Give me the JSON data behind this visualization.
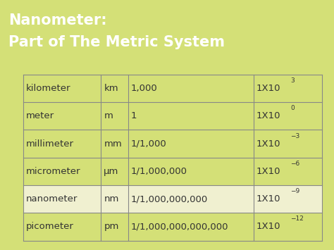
{
  "title_line1": "Nanometer:",
  "title_line2": "Part of The Metric System",
  "title_bg_color": "#556b2f",
  "title_text_color": "#ffffff",
  "page_bg_color": "#d4e077",
  "table_bg_color": "#d4e077",
  "highlight_row": 4,
  "highlight_color": "#f0f0d0",
  "border_color": "#888888",
  "text_color": "#333333",
  "rows": [
    [
      "kilometer",
      "km",
      "1,000",
      "3"
    ],
    [
      "meter",
      "m",
      "1",
      "0"
    ],
    [
      "millimeter",
      "mm",
      "1/1,000",
      "−3"
    ],
    [
      "micrometer",
      "μm",
      "1/1,000,000",
      "−6"
    ],
    [
      "nanometer",
      "nm",
      "1/1,000,000,000",
      "−9"
    ],
    [
      "picometer",
      "pm",
      "1/1,000,000,000,000",
      "−12"
    ]
  ],
  "title_font_size": 15,
  "font_size": 9.5,
  "sup_font_size": 6.5
}
